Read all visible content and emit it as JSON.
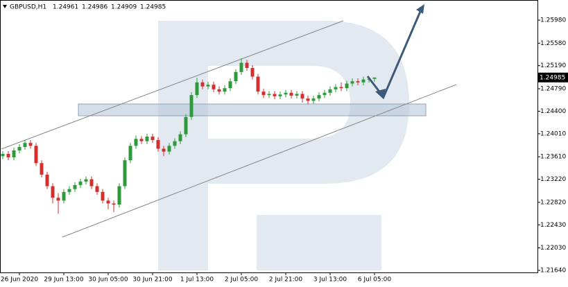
{
  "chart_data": {
    "type": "candlestick",
    "title": "GBPUSD,H1",
    "ohlc": [
      1.24961,
      1.24986,
      1.24909,
      1.24985
    ],
    "last_price": 1.24985,
    "up_color": "#2e9b3b",
    "down_color": "#d32f2f",
    "categories": [
      null,
      null,
      null,
      "26 Jun 2020",
      null,
      null,
      null,
      null,
      null,
      null,
      null,
      "29 Jun 13:00",
      null,
      null,
      null,
      null,
      null,
      null,
      null,
      "30 Jun 05:00",
      null,
      null,
      null,
      null,
      null,
      null,
      null,
      "30 Jun 21:00",
      null,
      null,
      null,
      null,
      null,
      null,
      null,
      "1 Jul 13:00",
      null,
      null,
      null,
      null,
      null,
      null,
      null,
      "2 Jul 05:00",
      null,
      null,
      null,
      null,
      null,
      null,
      null,
      "2 Jul 21:00",
      null,
      null,
      null,
      null,
      null,
      null,
      null,
      "3 Jul 13:00",
      null,
      null,
      null,
      null,
      null,
      null,
      null,
      "6 Jul 05:00"
    ],
    "open": [
      1.2362,
      1.2366,
      1.236,
      1.2372,
      1.2378,
      1.2385,
      1.238,
      1.235,
      1.233,
      1.231,
      1.229,
      1.2285,
      1.23,
      1.2305,
      1.2312,
      1.2318,
      1.2322,
      1.231,
      1.23,
      1.2285,
      1.228,
      1.2278,
      1.231,
      1.2355,
      1.238,
      1.2392,
      1.2388,
      1.2396,
      1.239,
      1.2375,
      1.237,
      1.238,
      1.2388,
      1.24,
      1.243,
      1.2468,
      1.249,
      1.2483,
      1.2486,
      1.2478,
      1.2474,
      1.248,
      1.2492,
      1.2508,
      1.2524,
      1.2515,
      1.25,
      1.2474,
      1.2468,
      1.247,
      1.2466,
      1.2469,
      1.2472,
      1.2467,
      1.247,
      1.2462,
      1.2458,
      1.2462,
      1.2468,
      1.2472,
      1.2478,
      1.2482,
      1.248,
      1.2488,
      1.2492,
      1.249,
      1.2495,
      1.24961
    ],
    "high": [
      1.2371,
      1.2371,
      1.2377,
      1.2383,
      1.239,
      1.239,
      1.2385,
      1.2355,
      1.2335,
      1.2315,
      1.2298,
      1.2305,
      1.231,
      1.2317,
      1.2323,
      1.2327,
      1.2327,
      1.2315,
      1.2305,
      1.229,
      1.2285,
      1.2315,
      1.236,
      1.2385,
      1.2398,
      1.2397,
      1.2401,
      1.2401,
      1.2395,
      1.238,
      1.2385,
      1.2393,
      1.2405,
      1.2435,
      1.2473,
      1.2498,
      1.2495,
      1.2491,
      1.2491,
      1.2483,
      1.2485,
      1.2497,
      1.2513,
      1.2532,
      1.2529,
      1.252,
      1.2505,
      1.2479,
      1.2475,
      1.2475,
      1.2474,
      1.2477,
      1.2477,
      1.2475,
      1.2475,
      1.2467,
      1.2467,
      1.2473,
      1.2477,
      1.2483,
      1.2487,
      1.249,
      1.2493,
      1.2497,
      1.2497,
      1.25,
      1.25,
      1.24986
    ],
    "low": [
      1.2357,
      1.2355,
      1.2355,
      1.2367,
      1.2373,
      1.2375,
      1.2345,
      1.2325,
      1.2305,
      1.228,
      1.2262,
      1.228,
      1.2295,
      1.23,
      1.2307,
      1.2313,
      1.2305,
      1.2295,
      1.228,
      1.227,
      1.2265,
      1.2273,
      1.2305,
      1.235,
      1.2375,
      1.2383,
      1.2383,
      1.2385,
      1.237,
      1.2362,
      1.2365,
      1.2375,
      1.2383,
      1.2395,
      1.2425,
      1.2463,
      1.2478,
      1.2478,
      1.2473,
      1.2469,
      1.2469,
      1.2475,
      1.2487,
      1.2503,
      1.251,
      1.2495,
      1.2469,
      1.2463,
      1.2463,
      1.2461,
      1.2461,
      1.2464,
      1.2462,
      1.2462,
      1.2455,
      1.2452,
      1.2453,
      1.2457,
      1.2463,
      1.2467,
      1.2473,
      1.2475,
      1.2475,
      1.2483,
      1.2485,
      1.2485,
      1.249,
      1.24909
    ],
    "close": [
      1.2366,
      1.236,
      1.2372,
      1.2378,
      1.2385,
      1.238,
      1.235,
      1.233,
      1.231,
      1.229,
      1.2285,
      1.23,
      1.2305,
      1.2312,
      1.2318,
      1.2322,
      1.231,
      1.23,
      1.2285,
      1.228,
      1.2278,
      1.231,
      1.2355,
      1.238,
      1.2392,
      1.2388,
      1.2396,
      1.239,
      1.2375,
      1.237,
      1.238,
      1.2388,
      1.24,
      1.243,
      1.2468,
      1.249,
      1.2483,
      1.2486,
      1.2478,
      1.2474,
      1.248,
      1.2492,
      1.2508,
      1.2524,
      1.2515,
      1.25,
      1.2474,
      1.2468,
      1.247,
      1.2466,
      1.2469,
      1.2472,
      1.2467,
      1.247,
      1.2462,
      1.2458,
      1.2462,
      1.2468,
      1.2472,
      1.2478,
      1.2482,
      1.248,
      1.2488,
      1.2492,
      1.249,
      1.2495,
      1.24961,
      1.24985
    ],
    "ylim": [
      1.21604,
      1.26329
    ],
    "yticks": [
      {
        "value": 1.2598,
        "label": "1.25980"
      },
      {
        "value": 1.2558,
        "label": "1.25580"
      },
      {
        "value": 1.2519,
        "label": "1.25190"
      },
      {
        "value": 1.2479,
        "label": "1.24790"
      },
      {
        "value": 1.244,
        "label": "1.24400"
      },
      {
        "value": 1.2401,
        "label": "1.24010"
      },
      {
        "value": 1.2361,
        "label": "1.23610"
      },
      {
        "value": 1.2322,
        "label": "1.23220"
      },
      {
        "value": 1.2282,
        "label": "1.22820"
      },
      {
        "value": 1.2243,
        "label": "1.22430"
      },
      {
        "value": 1.2203,
        "label": "1.22030"
      },
      {
        "value": 1.2164,
        "label": "1.21640"
      }
    ]
  }
}
